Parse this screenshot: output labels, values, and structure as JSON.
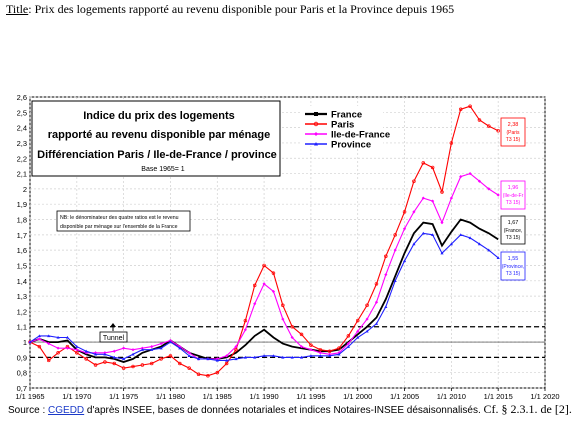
{
  "page": {
    "title_prefix": "Title",
    "title_text": ": Prix des logements rapporté au revenu disponible pour Paris et la Province depuis 1965",
    "source_label": "Source : ",
    "source_link": "CGEDD",
    "source_text": " d'après INSEE, bases de données notariales et indices Notaires-INSEE désaisonnalisés.",
    "source_ref": "Cf. § 2.3.1. de [2]."
  },
  "chart_data": {
    "type": "line",
    "title_lines": [
      "Indice du prix des logements",
      "rapporté au revenu disponible par ménage",
      "Différenciation Paris / Ile-de-France / province"
    ],
    "base_note": "Base 1965= 1",
    "nb_note_lines": [
      "NB: le dénominateur des quatre ratios est le revenu",
      "disponible par ménage sur l'ensemble de la France"
    ],
    "tunnel_label": "Tunnel",
    "xlim": [
      1965,
      2020
    ],
    "ylim": [
      0.7,
      2.6
    ],
    "x_tick_labels": [
      "1/1 1965",
      "1/1 1970",
      "1/1 1975",
      "1/1 1980",
      "1/1 1985",
      "1/1 1990",
      "1/1 1995",
      "1/1 2000",
      "1/1 2005",
      "1/1 2010",
      "1/1 2015",
      "1/1 2020"
    ],
    "y_tick_labels": [
      "0,7",
      "0,8",
      "0,9",
      "1",
      "1,1",
      "1,2",
      "1,3",
      "1,4",
      "1,5",
      "1,6",
      "1,7",
      "1,8",
      "1,9",
      "2",
      "2,1",
      "2,2",
      "2,3",
      "2,4",
      "2,5",
      "2,6"
    ],
    "grid": true,
    "reference_lines": [
      0.9,
      1.1
    ],
    "series": [
      {
        "name": "France",
        "color": "#000000",
        "marker": "none",
        "x": [
          1965,
          1966,
          1967,
          1968,
          1969,
          1970,
          1971,
          1972,
          1973,
          1974,
          1975,
          1976,
          1977,
          1978,
          1979,
          1980,
          1981,
          1982,
          1983,
          1984,
          1985,
          1986,
          1987,
          1988,
          1989,
          1990,
          1991,
          1992,
          1993,
          1994,
          1995,
          1996,
          1997,
          1998,
          1999,
          2000,
          2001,
          2002,
          2003,
          2004,
          2005,
          2006,
          2007,
          2008,
          2009,
          2010,
          2011,
          2012,
          2013,
          2014,
          2015
        ],
        "y": [
          1.0,
          1.02,
          1.0,
          1.0,
          1.01,
          0.95,
          0.92,
          0.9,
          0.9,
          0.89,
          0.87,
          0.89,
          0.93,
          0.95,
          0.97,
          1.01,
          0.97,
          0.93,
          0.91,
          0.89,
          0.89,
          0.9,
          0.93,
          0.98,
          1.04,
          1.08,
          1.03,
          0.99,
          0.97,
          0.96,
          0.95,
          0.94,
          0.94,
          0.95,
          1.0,
          1.05,
          1.1,
          1.16,
          1.28,
          1.43,
          1.58,
          1.71,
          1.78,
          1.77,
          1.63,
          1.72,
          1.8,
          1.78,
          1.74,
          1.71,
          1.67
        ]
      },
      {
        "name": "Paris",
        "color": "#ff0000",
        "marker": "circle",
        "x": [
          1965,
          1966,
          1967,
          1968,
          1969,
          1970,
          1971,
          1972,
          1973,
          1974,
          1975,
          1976,
          1977,
          1978,
          1979,
          1980,
          1981,
          1982,
          1983,
          1984,
          1985,
          1986,
          1987,
          1988,
          1989,
          1990,
          1991,
          1992,
          1993,
          1994,
          1995,
          1996,
          1997,
          1998,
          1999,
          2000,
          2001,
          2002,
          2003,
          2004,
          2005,
          2006,
          2007,
          2008,
          2009,
          2010,
          2011,
          2012,
          2013,
          2014,
          2015
        ],
        "y": [
          1.0,
          0.97,
          0.88,
          0.93,
          0.97,
          0.93,
          0.89,
          0.85,
          0.87,
          0.86,
          0.83,
          0.84,
          0.85,
          0.86,
          0.89,
          0.91,
          0.86,
          0.83,
          0.79,
          0.78,
          0.8,
          0.86,
          0.95,
          1.14,
          1.37,
          1.5,
          1.45,
          1.24,
          1.1,
          1.05,
          0.98,
          0.95,
          0.94,
          0.96,
          1.04,
          1.14,
          1.24,
          1.38,
          1.56,
          1.7,
          1.85,
          2.05,
          2.17,
          2.14,
          1.98,
          2.3,
          2.52,
          2.54,
          2.45,
          2.41,
          2.38
        ]
      },
      {
        "name": "Ile-de-France",
        "color": "#ff00ff",
        "marker": "diamond",
        "x": [
          1965,
          1966,
          1967,
          1968,
          1969,
          1970,
          1971,
          1972,
          1973,
          1974,
          1975,
          1976,
          1977,
          1978,
          1979,
          1980,
          1981,
          1982,
          1983,
          1984,
          1985,
          1986,
          1987,
          1988,
          1989,
          1990,
          1991,
          1992,
          1993,
          1994,
          1995,
          1996,
          1997,
          1998,
          1999,
          2000,
          2001,
          2002,
          2003,
          2004,
          2005,
          2006,
          2007,
          2008,
          2009,
          2010,
          2011,
          2012,
          2013,
          2014,
          2015
        ],
        "y": [
          1.0,
          1.02,
          0.99,
          0.96,
          0.96,
          0.95,
          0.93,
          0.93,
          0.93,
          0.94,
          0.96,
          0.95,
          0.96,
          0.97,
          0.99,
          1.01,
          0.97,
          0.93,
          0.89,
          0.89,
          0.89,
          0.91,
          0.97,
          1.08,
          1.25,
          1.38,
          1.33,
          1.15,
          1.03,
          0.97,
          0.95,
          0.93,
          0.92,
          0.93,
          0.99,
          1.07,
          1.15,
          1.26,
          1.44,
          1.6,
          1.74,
          1.85,
          1.94,
          1.92,
          1.78,
          1.94,
          2.08,
          2.1,
          2.05,
          2.0,
          1.96
        ]
      },
      {
        "name": "Province",
        "color": "#2020ff",
        "marker": "triangle",
        "x": [
          1965,
          1966,
          1967,
          1968,
          1969,
          1970,
          1971,
          1972,
          1973,
          1974,
          1975,
          1976,
          1977,
          1978,
          1979,
          1980,
          1981,
          1982,
          1983,
          1984,
          1985,
          1986,
          1987,
          1988,
          1989,
          1990,
          1991,
          1992,
          1993,
          1994,
          1995,
          1996,
          1997,
          1998,
          1999,
          2000,
          2001,
          2002,
          2003,
          2004,
          2005,
          2006,
          2007,
          2008,
          2009,
          2010,
          2011,
          2012,
          2013,
          2014,
          2015
        ],
        "y": [
          1.0,
          1.04,
          1.04,
          1.03,
          1.03,
          0.97,
          0.94,
          0.92,
          0.92,
          0.9,
          0.89,
          0.92,
          0.95,
          0.95,
          0.96,
          1.0,
          0.96,
          0.91,
          0.89,
          0.89,
          0.88,
          0.88,
          0.89,
          0.9,
          0.9,
          0.91,
          0.91,
          0.9,
          0.9,
          0.9,
          0.91,
          0.91,
          0.91,
          0.92,
          0.97,
          1.03,
          1.07,
          1.12,
          1.23,
          1.4,
          1.53,
          1.64,
          1.71,
          1.7,
          1.58,
          1.64,
          1.7,
          1.68,
          1.64,
          1.6,
          1.55
        ]
      }
    ],
    "end_labels": [
      {
        "series": "Paris",
        "value": "2,38",
        "text": "(Paris\nT3 15)",
        "color": "#ff0000"
      },
      {
        "series": "Ile-de-France",
        "value": "1,96",
        "text": "(Ile-de-Fr\nT3 15)",
        "color": "#ff00ff"
      },
      {
        "series": "France",
        "value": "1,67",
        "text": "(France,\nT3 15)",
        "color": "#000000"
      },
      {
        "series": "Province",
        "value": "1,55",
        "text": "(Province,\nT3 15)",
        "color": "#2020ff"
      }
    ]
  }
}
